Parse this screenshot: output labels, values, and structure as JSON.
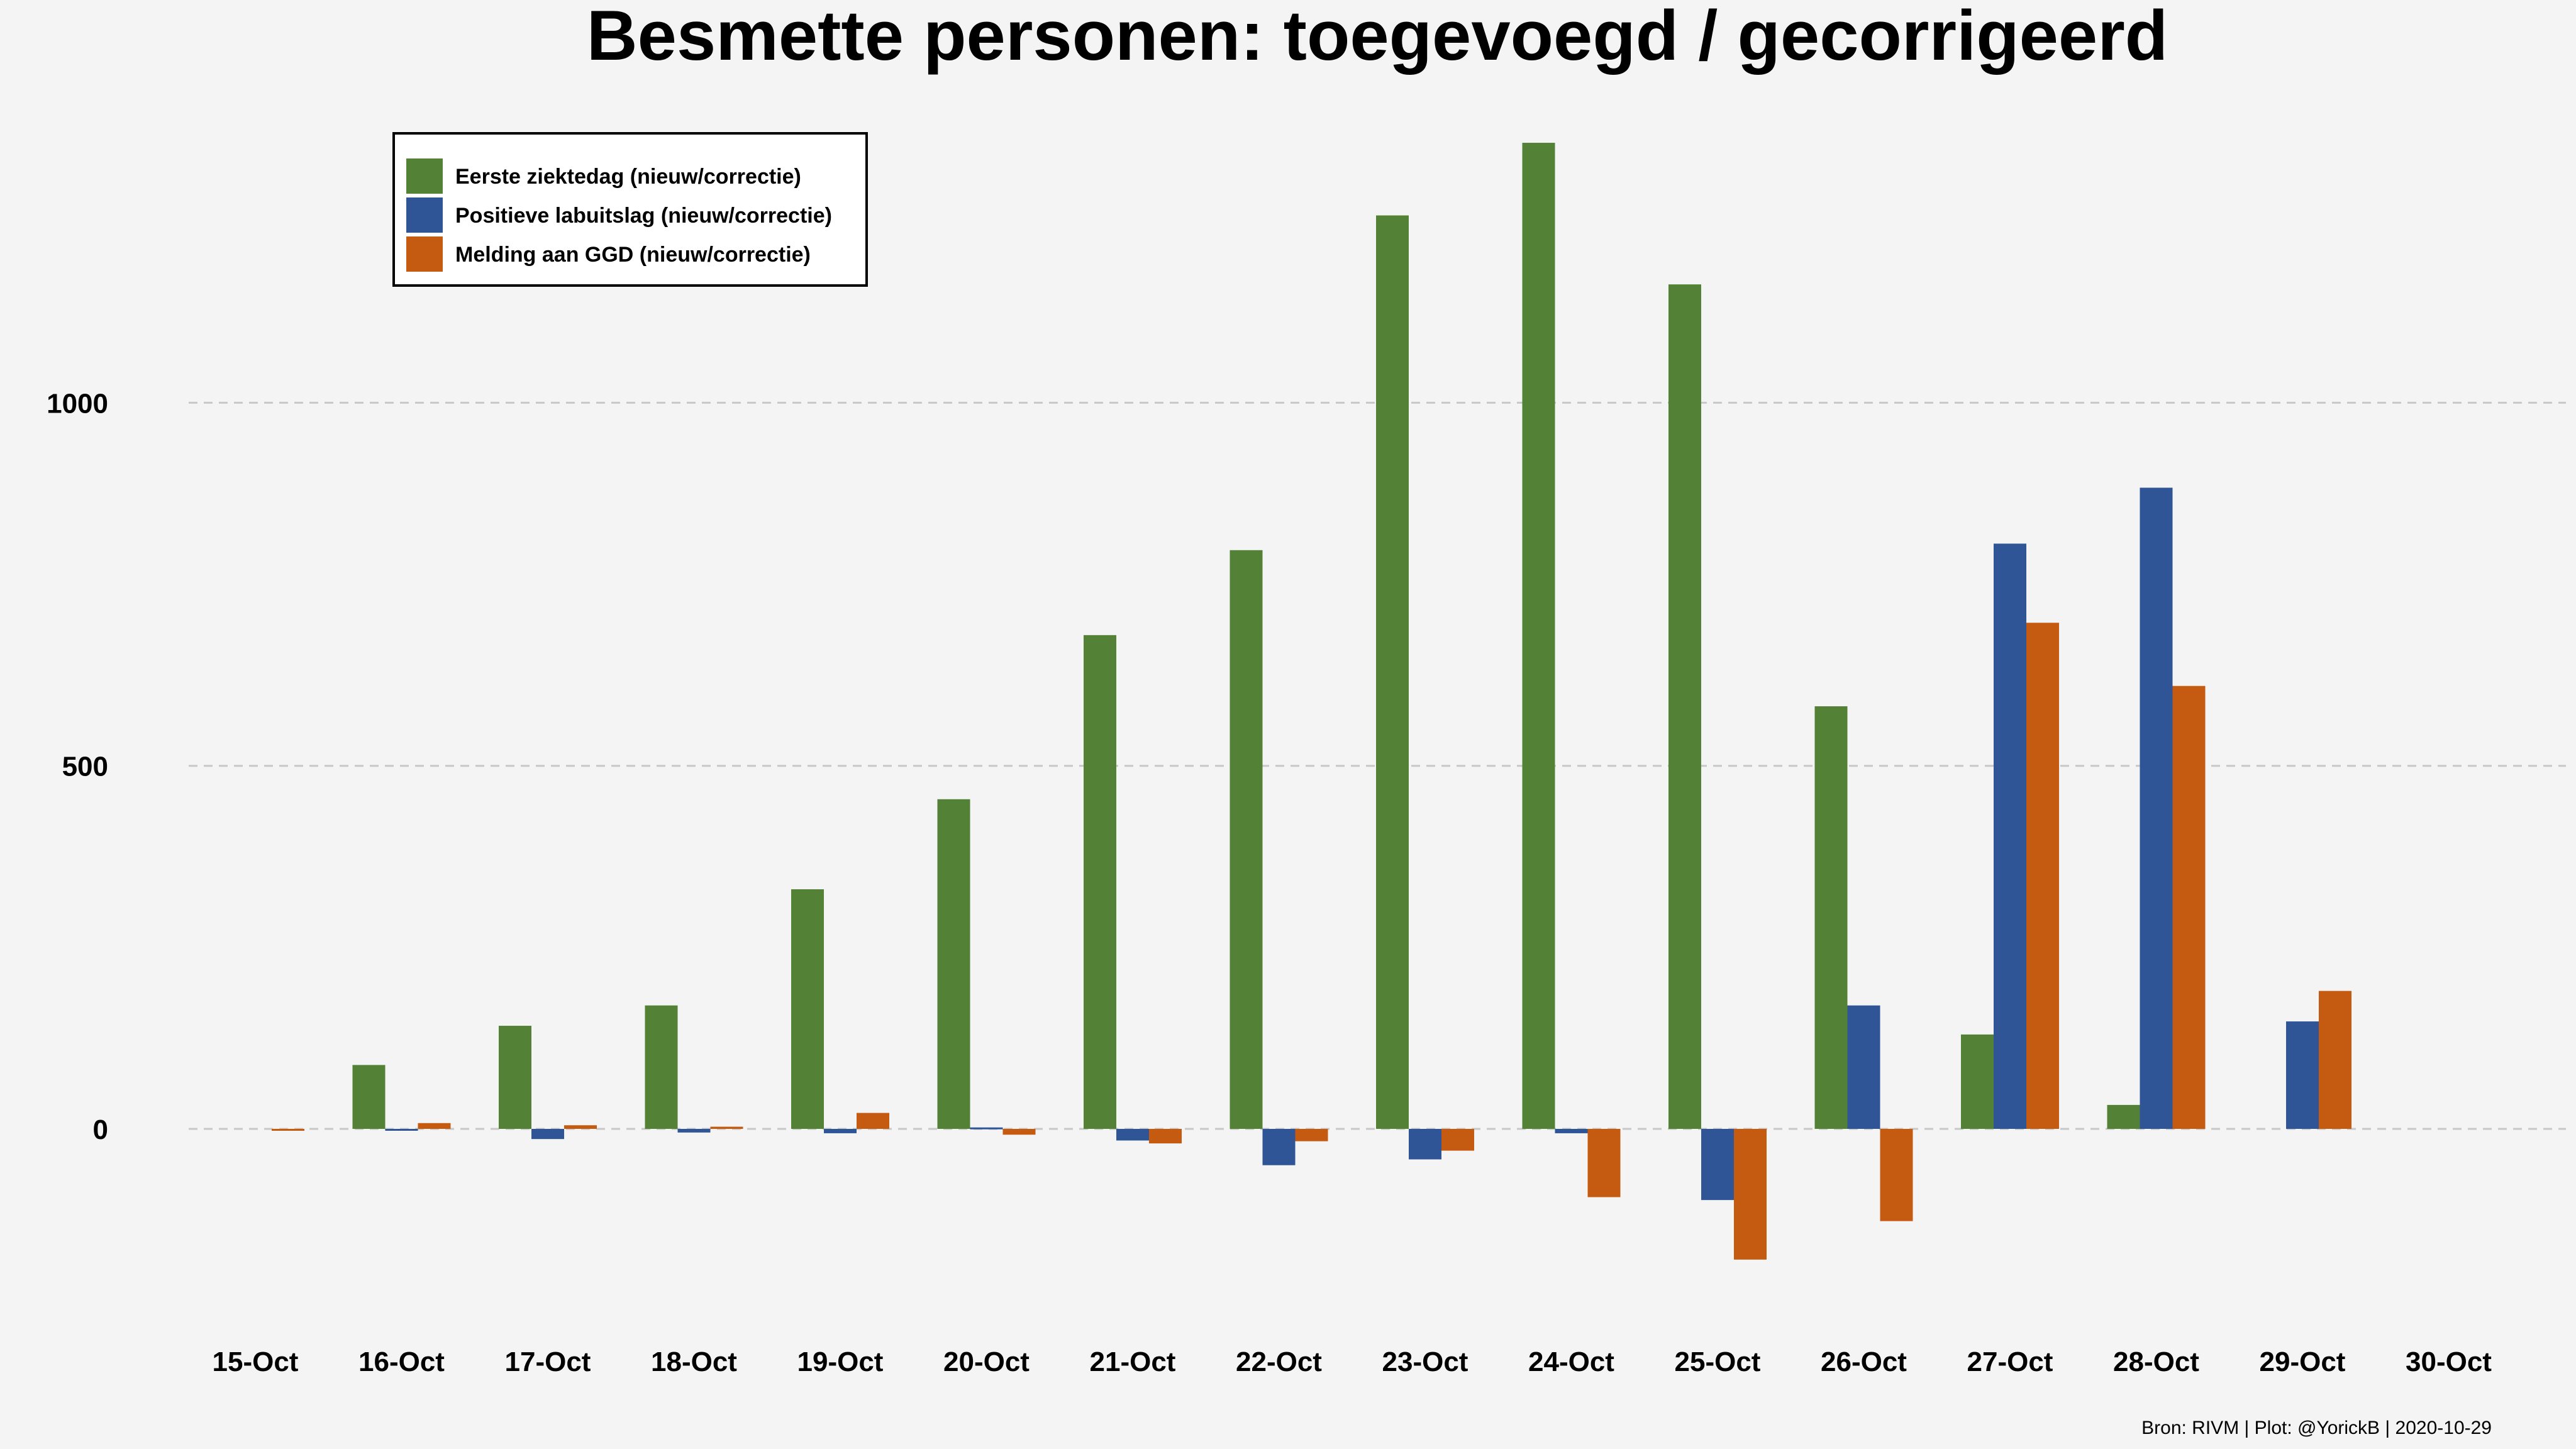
{
  "chart_data": {
    "type": "bar",
    "title": "Besmette personen: toegevoegd / gecorrigeerd",
    "xlabel": "",
    "ylabel": "",
    "categories": [
      "15-Oct",
      "16-Oct",
      "17-Oct",
      "18-Oct",
      "19-Oct",
      "20-Oct",
      "21-Oct",
      "22-Oct",
      "23-Oct",
      "24-Oct",
      "25-Oct",
      "26-Oct",
      "27-Oct",
      "28-Oct",
      "29-Oct",
      "30-Oct"
    ],
    "series": [
      {
        "name": "Eerste ziektedag (nieuw/correctie)",
        "color": "#538135",
        "values": [
          0,
          88,
          142,
          170,
          330,
          454,
          680,
          797,
          1258,
          1358,
          1163,
          582,
          130,
          33,
          0,
          0
        ]
      },
      {
        "name": "Positieve labuitslag (nieuw/correctie)",
        "color": "#2f5597",
        "values": [
          0,
          -2,
          -14,
          -5,
          -6,
          2,
          -16,
          -50,
          -42,
          -6,
          -98,
          170,
          806,
          883,
          148,
          0
        ]
      },
      {
        "name": "Melding aan GGD (nieuw/correctie)",
        "color": "#c55a11",
        "values": [
          -2,
          8,
          5,
          3,
          22,
          -8,
          -20,
          -17,
          -30,
          -94,
          -180,
          -127,
          697,
          610,
          190,
          0
        ]
      }
    ],
    "yticks": [
      0,
      500,
      1000
    ],
    "ytick_labels": [
      "0",
      "500",
      "1000"
    ],
    "ylim": [
      -250,
      1400
    ],
    "grid": "horizontal dashed",
    "legend_position": "top-left",
    "caption": "Bron: RIVM | Plot: @YorickB |  2020-10-29"
  }
}
